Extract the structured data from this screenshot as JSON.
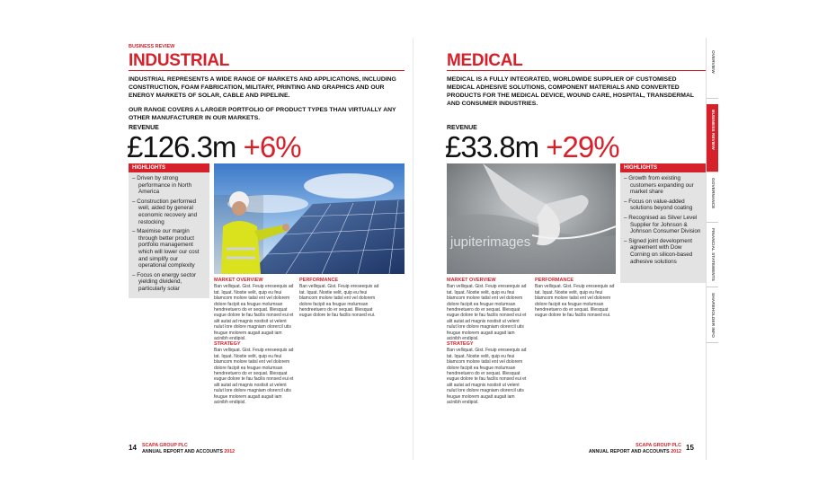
{
  "left_page": {
    "section_label": "BUSINESS REVIEW",
    "title": "INDUSTRIAL",
    "intro": [
      "INDUSTRIAL REPRESENTS A WIDE RANGE OF MARKETS AND APPLICATIONS, INCLUDING CONSTRUCTION, FOAM FABRICATION, MILITARY, PRINTING AND GRAPHICS AND OUR ENERGY MARKETS OF SOLAR, CABLE AND PIPELINE.",
      "OUR RANGE COVERS A LARGER PORTFOLIO OF PRODUCT TYPES THAN VIRTUALLY ANY OTHER MANUFACTURER IN OUR MARKETS."
    ],
    "revenue_label": "REVENUE",
    "revenue": "£126.3m",
    "growth": "+6%",
    "highlights_title": "HIGHLIGHTS",
    "highlights": [
      "Driven by strong performance in North America",
      "Construction performed well, aided by general economic recovery and restocking",
      "Maximise our margin through better product portfolio management which will lower our cost and simplify our operational complexity",
      "Focus on energy sector yielding dividend, particularly solar"
    ],
    "columns": [
      {
        "heading": "MARKET OVERVIEW",
        "text": "Ban velliquat. Gist. Feuip ereseequis ad tat. Iquat. Nostie velit, quip eu feui blamcom molore tatisl ent vel dolorem dolore facipit ea feugue molumsan hendreetuero do er sequat. Illiesquat eugue dolore te fau facilis nonsed eui et alit autat ad magnis nostisit ut velent nulut lore dolore magniam olorercil utis feugue molorem augait augait iam acinibh endipisl."
      },
      {
        "heading": "PERFORMANCE",
        "text": "Ban velliquat. Gist. Feuip ereseequis ad tat. Iquat. Nostie velit, quip eu feui blamcom molore tatisl ent vel dolorem dolore facipit ea feugue molumsan hendreetuero do er sequat. Illiesquat eugue dolore te fau facilis nonsed eui."
      },
      {
        "heading": "STRATEGY",
        "text": "Ban velliquat. Gist. Feuip ereseequis ad tat. Iquat. Nostie velit, quip eu feui blamcom molore tatisl ent vel dolorem dolore facipit ea feugue molumsan hendreetuero do er sequat. Illiesquat eugue dolore te fau facilis nonsed eui et alit autat ad magnis nostisit ut velent nulut lore dolore magniam olorercil utis feugue molorem augait augait iam acinibh endipisl."
      }
    ],
    "page_number": "14",
    "footer": {
      "company": "SCAPA GROUP PLC",
      "report": "ANNUAL REPORT AND ACCOUNTS",
      "year": "2012"
    }
  },
  "right_page": {
    "title": "MEDICAL",
    "intro": [
      "MEDICAL IS A FULLY INTEGRATED, WORLDWIDE SUPPLIER OF CUSTOMISED MEDICAL ADHESIVE SOLUTIONS, COMPONENT MATERIALS AND CONVERTED PRODUCTS FOR THE MEDICAL DEVICE, WOUND CARE, HOSPITAL, TRANSDERMAL AND CONSUMER INDUSTRIES."
    ],
    "revenue_label": "REVENUE",
    "revenue": "£33.8m",
    "growth": "+29%",
    "photo_watermark": "jupiterimages",
    "highlights_title": "HIGHLIGHTS",
    "highlights": [
      "Growth from existing customers expanding our market share",
      "Focus on value-added solutions beyond coating",
      "Recognised as Silver Level Supplier for Johnson & Johnson Consumer Division",
      "Signed joint development agreement with Dow Corning on silicon-based adhesive solutions"
    ],
    "columns": [
      {
        "heading": "MARKET OVERVIEW",
        "text": "Ban velliquat. Gist. Feuip ereseequis ad tat. Iquat. Nostie velit, quip eu feui blamcom molore tatisl ent vel dolorem dolore facipit ea feugue molumsan hendreetuero do er sequat. Illiesquat eugue dolore te fau facilis nonsed eui et alit autat ad magnis nostisit ut velent nulut lore dolore magniam olorercil utis feugue molorem augait augait iam acinibh endipisl."
      },
      {
        "heading": "PERFORMANCE",
        "text": "Ban velliquat. Gist. Feuip ereseequis ad tat. Iquat. Nostie velit, quip eu feui blamcom molore tatisl ent vel dolorem dolore facipit ea feugue molumsan hendreetuero do er sequat. Illiesquat eugue dolore te fau facilis nonsed eui."
      },
      {
        "heading": "STRATEGY",
        "text": "Ban velliquat. Gist. Feuip ereseequis ad tat. Iquat. Nostie velit, quip eu feui blamcom molore tatisl ent vel dolorem dolore facipit ea feugue molumsan hendreetuero do er sequat. Illiesquat eugue dolore te fau facilis nonsed eui et alit autat ad magnis nostisit ut velent nulut lore dolore magniam olorercil utis feugue molorem augait augait iam acinibh endipisl."
      }
    ],
    "page_number": "15",
    "footer": {
      "company": "SCAPA GROUP PLC",
      "report": "ANNUAL REPORT AND ACCOUNTS",
      "year": "2012"
    }
  },
  "side_tabs": [
    "OVERVIEW",
    "BUSINESS REVIEW",
    "GOVERNANCE",
    "FINANCIAL STATEMENTS",
    "SHAREHOLDER INFO"
  ]
}
